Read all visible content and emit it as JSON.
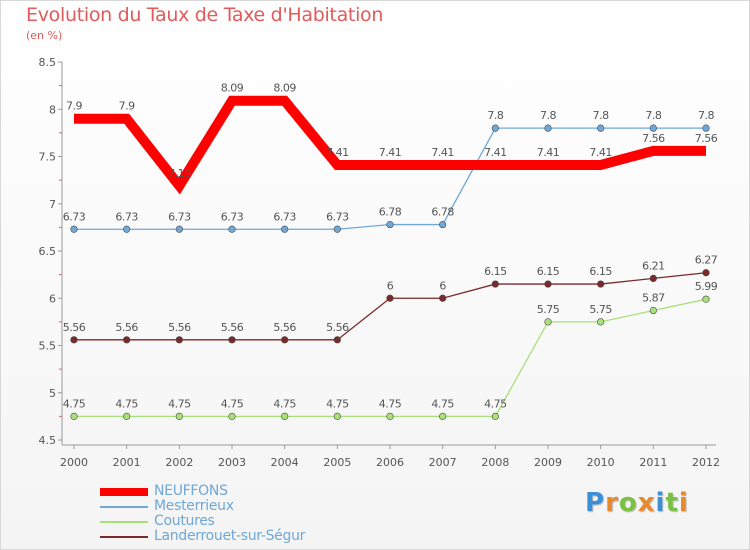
{
  "title": "Evolution du Taux de Taxe d'Habitation",
  "subtitle": "(en %)",
  "logo": "Proxiti",
  "chart_data": {
    "type": "line",
    "title": "Evolution du Taux de Taxe d'Habitation",
    "ylabel": "(en %)",
    "xlabel": "",
    "x": [
      "2000",
      "2001",
      "2002",
      "2003",
      "2004",
      "2005",
      "2006",
      "2007",
      "2008",
      "2009",
      "2010",
      "2011",
      "2012"
    ],
    "ylim": [
      4.5,
      8.5
    ],
    "yticks": [
      "4.5",
      "5",
      "5.5",
      "6",
      "6.5",
      "7",
      "7.5",
      "8",
      "8.5"
    ],
    "grid": false,
    "legend_position": "bottom-left",
    "series": [
      {
        "name": "NEUFFONS",
        "color": "#ff0000",
        "values": [
          7.9,
          7.9,
          7.19,
          8.09,
          8.09,
          7.41,
          7.41,
          7.41,
          7.41,
          7.41,
          7.41,
          7.56,
          7.56
        ],
        "labels": [
          "7.9",
          "7.9",
          "7.19",
          "8.09",
          "8.09",
          "7.41",
          "7.41",
          "7.41",
          "7.41",
          "7.41",
          "7.41",
          "7.56",
          "7.56"
        ]
      },
      {
        "name": "Mesterrieux",
        "color": "#6fa7d6",
        "values": [
          6.73,
          6.73,
          6.73,
          6.73,
          6.73,
          6.73,
          6.78,
          6.78,
          7.8,
          7.8,
          7.8,
          7.8,
          7.8
        ],
        "labels": [
          "6.73",
          "6.73",
          "6.73",
          "6.73",
          "6.73",
          "6.73",
          "6.78",
          "6.78",
          "7.8",
          "7.8",
          "7.8",
          "7.8",
          "7.8"
        ]
      },
      {
        "name": "Coutures",
        "color": "#a8e07a",
        "values": [
          4.75,
          4.75,
          4.75,
          4.75,
          4.75,
          4.75,
          4.75,
          4.75,
          4.75,
          5.75,
          5.75,
          5.87,
          5.99
        ],
        "labels": [
          "4.75",
          "4.75",
          "4.75",
          "4.75",
          "4.75",
          "4.75",
          "4.75",
          "4.75",
          "4.75",
          "5.75",
          "5.75",
          "5.87",
          "5.99"
        ]
      },
      {
        "name": "Landerrouet-sur-Ségur",
        "color": "#7a2a2a",
        "values": [
          5.56,
          5.56,
          5.56,
          5.56,
          5.56,
          5.56,
          6,
          6,
          6.15,
          6.15,
          6.15,
          6.21,
          6.27
        ],
        "labels": [
          "5.56",
          "5.56",
          "5.56",
          "5.56",
          "5.56",
          "5.56",
          "6",
          "6",
          "6.15",
          "6.15",
          "6.15",
          "6.21",
          "6.27"
        ]
      }
    ]
  }
}
